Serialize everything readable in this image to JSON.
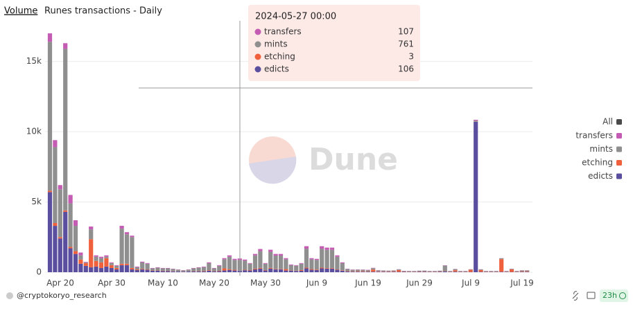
{
  "chart_data": {
    "type": "bar",
    "tab": "Volume",
    "title": "Runes transactions - Daily",
    "watermark": "Dune",
    "footer": "@cryptokoryo_research",
    "refresh": "23h",
    "legend_all": "All",
    "legend_all_color": "#4a4a4a",
    "tooltip_title": "2024-05-27 00:00",
    "stacked": true,
    "grid": true,
    "legend": "right",
    "categories": [
      "Apr 20",
      null,
      null,
      null,
      null,
      null,
      null,
      null,
      null,
      null,
      "Apr 30",
      null,
      null,
      null,
      null,
      null,
      null,
      null,
      null,
      null,
      "May 10",
      null,
      null,
      null,
      null,
      null,
      null,
      null,
      null,
      null,
      "May 20",
      null,
      null,
      null,
      null,
      null,
      null,
      null,
      null,
      null,
      "May 30",
      null,
      null,
      null,
      null,
      null,
      null,
      null,
      null,
      null,
      "Jun 9",
      null,
      null,
      null,
      null,
      null,
      null,
      null,
      null,
      null,
      "Jun 19",
      null,
      null,
      null,
      null,
      null,
      null,
      null,
      null,
      null,
      "Jun 29",
      null,
      null,
      null,
      null,
      null,
      null,
      null,
      null,
      null,
      "Jul 9",
      null,
      null,
      null,
      null,
      null,
      null,
      null,
      null,
      null,
      "Jul 19",
      null,
      null,
      null
    ],
    "ylim": [
      0,
      17500
    ],
    "yticks": [
      0,
      {
        "value": 5000,
        "label": "5k"
      },
      {
        "value": 10000,
        "label": "10k"
      },
      {
        "value": 15000,
        "label": "15k"
      }
    ],
    "series": [
      {
        "name": "transfers",
        "color": "#c45cb3",
        "values": [
          600,
          500,
          300,
          400,
          600,
          400,
          200,
          40,
          200,
          100,
          100,
          100,
          50,
          50,
          200,
          150,
          100,
          50,
          60,
          50,
          30,
          30,
          30,
          30,
          20,
          20,
          20,
          20,
          30,
          30,
          40,
          60,
          30,
          50,
          80,
          100,
          80,
          107,
          80,
          50,
          100,
          150,
          50,
          150,
          120,
          120,
          80,
          50,
          40,
          50,
          180,
          80,
          80,
          180,
          160,
          160,
          100,
          60,
          20,
          20,
          20,
          20,
          20,
          20,
          20,
          10,
          10,
          10,
          10,
          10,
          10,
          10,
          10,
          10,
          10,
          10,
          10,
          20,
          10,
          10,
          10,
          10,
          10,
          60,
          10,
          10,
          10,
          10,
          10,
          10,
          10,
          10,
          10,
          10
        ]
      },
      {
        "name": "mints",
        "color": "#8f8f8f",
        "values": [
          10600,
          5400,
          3400,
          11500,
          3100,
          1800,
          300,
          50,
          700,
          300,
          300,
          100,
          150,
          150,
          2500,
          2100,
          2200,
          150,
          450,
          400,
          150,
          200,
          170,
          170,
          150,
          120,
          80,
          120,
          200,
          250,
          280,
          500,
          200,
          350,
          650,
          900,
          700,
          761,
          650,
          450,
          950,
          1200,
          450,
          1150,
          950,
          950,
          700,
          380,
          350,
          450,
          1350,
          700,
          680,
          1350,
          1300,
          1300,
          900,
          500,
          150,
          100,
          100,
          90,
          80,
          100,
          70,
          60,
          50,
          50,
          50,
          40,
          40,
          40,
          50,
          60,
          40,
          40,
          50,
          400,
          40,
          80,
          40,
          40,
          30,
          80,
          50,
          40,
          40,
          40,
          60,
          40,
          40,
          40,
          60,
          60
        ]
      },
      {
        "name": "etching",
        "color": "#f0603c",
        "values": [
          100,
          200,
          100,
          100,
          100,
          200,
          300,
          200,
          2000,
          400,
          400,
          600,
          200,
          100,
          100,
          100,
          100,
          50,
          40,
          30,
          20,
          20,
          20,
          20,
          20,
          10,
          10,
          10,
          20,
          20,
          30,
          40,
          20,
          30,
          150,
          50,
          50,
          3,
          30,
          30,
          50,
          50,
          30,
          50,
          30,
          30,
          100,
          20,
          20,
          50,
          50,
          50,
          40,
          50,
          40,
          40,
          30,
          30,
          30,
          30,
          40,
          40,
          30,
          150,
          30,
          30,
          30,
          40,
          120,
          20,
          20,
          20,
          20,
          20,
          20,
          20,
          20,
          20,
          20,
          100,
          20,
          20,
          150,
          10,
          120,
          20,
          20,
          20,
          900,
          20,
          180,
          20,
          40,
          40
        ]
      },
      {
        "name": "edicts",
        "color": "#5a4f9e",
        "values": [
          5700,
          3300,
          2400,
          4300,
          1700,
          1300,
          600,
          450,
          350,
          400,
          300,
          400,
          300,
          200,
          500,
          500,
          200,
          150,
          200,
          170,
          100,
          100,
          80,
          80,
          60,
          50,
          40,
          50,
          50,
          50,
          50,
          100,
          50,
          70,
          120,
          150,
          120,
          106,
          140,
          120,
          200,
          250,
          120,
          250,
          200,
          200,
          120,
          100,
          90,
          100,
          270,
          170,
          150,
          270,
          250,
          250,
          170,
          110,
          50,
          40,
          40,
          40,
          40,
          40,
          30,
          30,
          30,
          30,
          30,
          30,
          20,
          20,
          30,
          30,
          20,
          20,
          30,
          50,
          20,
          40,
          20,
          20,
          20,
          10700,
          30,
          20,
          20,
          20,
          30,
          20,
          20,
          20,
          30,
          30
        ]
      }
    ]
  }
}
